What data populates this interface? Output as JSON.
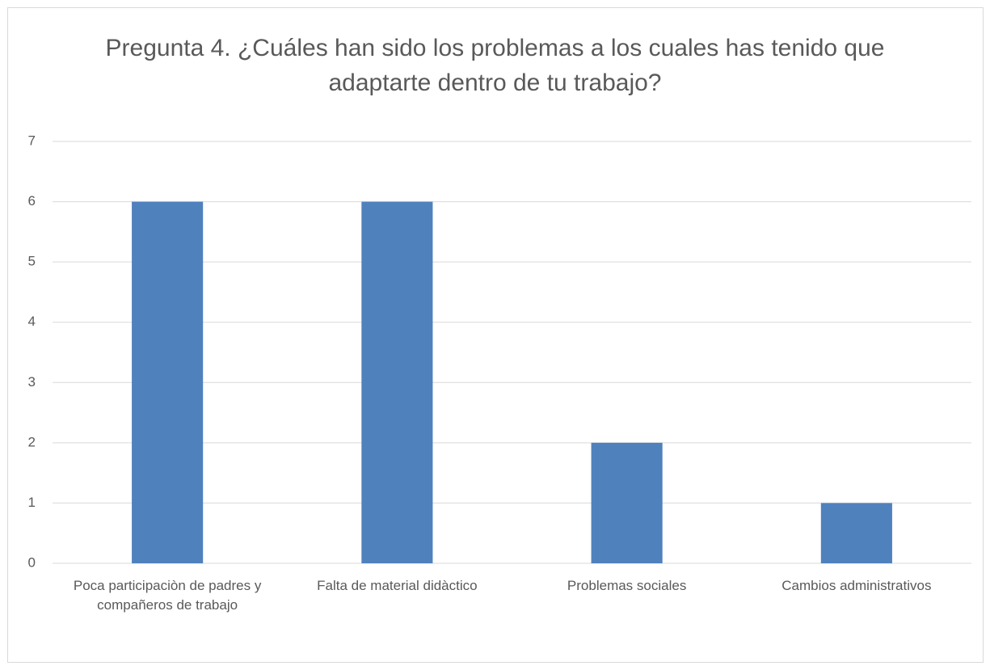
{
  "chart_data": {
    "type": "bar",
    "title": "Pregunta 4. ¿Cuáles han sido los problemas a los cuales has tenido que adaptarte dentro de tu trabajo?",
    "categories": [
      "Poca participaciòn de padres y compañeros de trabajo",
      "Falta de material didàctico",
      "Problemas sociales",
      "Cambios administrativos"
    ],
    "values": [
      6,
      6,
      2,
      1
    ],
    "color": "#4f81bd",
    "ylim": [
      0,
      7
    ],
    "yticks": [
      0,
      1,
      2,
      3,
      4,
      5,
      6,
      7
    ],
    "grid": true
  }
}
